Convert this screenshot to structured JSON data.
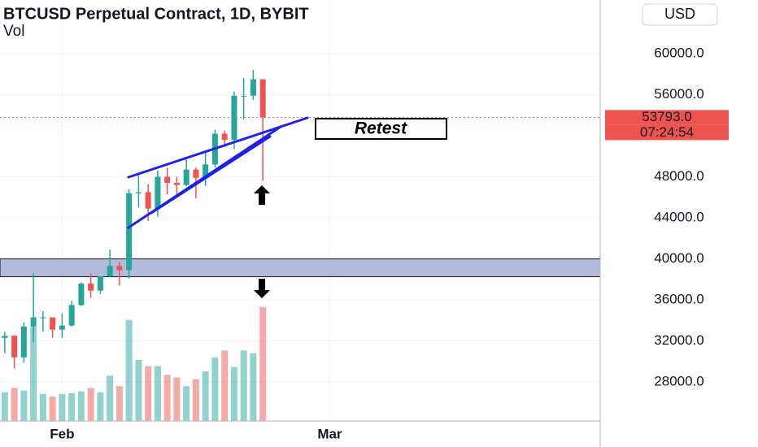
{
  "chart_data": {
    "type": "candlestick",
    "title": "BTCUSD Perpetual Contract, 1D, BYBIT",
    "subtitle": "Vol",
    "currency": "USD",
    "annotation": "Retest",
    "x": [
      0,
      1,
      2,
      3,
      4,
      5,
      6,
      7,
      8,
      9,
      10,
      11,
      12,
      13,
      14,
      15,
      16,
      17,
      18,
      19,
      20,
      21,
      22,
      23,
      24,
      25,
      26,
      27
    ],
    "open": [
      32300,
      32500,
      30400,
      33400,
      34300,
      34300,
      33100,
      33500,
      35500,
      37600,
      36900,
      38300,
      39300,
      38900,
      46400,
      46500,
      44900,
      48000,
      47400,
      47200,
      48700,
      47900,
      49200,
      52200,
      51600,
      55900,
      55900,
      57500
    ],
    "high": [
      32900,
      32600,
      33800,
      38600,
      34900,
      34300,
      34700,
      35900,
      37700,
      38600,
      38300,
      40900,
      39700,
      46800,
      48200,
      47300,
      48600,
      48900,
      48000,
      49700,
      48900,
      50600,
      52600,
      52500,
      56300,
      57600,
      58400,
      57500
    ],
    "low": [
      30800,
      29300,
      29900,
      31900,
      32900,
      32300,
      32300,
      33400,
      35400,
      36200,
      36600,
      38200,
      37400,
      38100,
      45000,
      43700,
      44100,
      46300,
      46300,
      47100,
      45900,
      47100,
      48900,
      50900,
      50700,
      53600,
      55500,
      47600
    ],
    "close": [
      32500,
      30400,
      33400,
      34300,
      34300,
      33100,
      33500,
      35500,
      37600,
      36900,
      38300,
      39300,
      38900,
      46400,
      46500,
      44900,
      48000,
      47400,
      47200,
      48700,
      47900,
      49200,
      52200,
      51600,
      55900,
      55900,
      57500,
      53793
    ],
    "volume": [
      33,
      38,
      35,
      108,
      31,
      28,
      31,
      32,
      34,
      38,
      33,
      52,
      40,
      116,
      70,
      63,
      63,
      53,
      50,
      40,
      48,
      57,
      73,
      81,
      62,
      81,
      78,
      131
    ],
    "vlim": [
      0,
      140
    ],
    "up_color": "#26a69a",
    "down_color": "#ef5350",
    "xlim": [
      -0.5,
      62.3
    ],
    "xticks": [
      {
        "value": 6,
        "label": "Feb"
      },
      {
        "value": 34,
        "label": "Mar"
      }
    ],
    "ylim": [
      24200,
      65230
    ],
    "yticks": [
      {
        "value": 28000,
        "label": "28000.0"
      },
      {
        "value": 32000,
        "label": "32000.0"
      },
      {
        "value": 36000,
        "label": "36000.0"
      },
      {
        "value": 40000,
        "label": "40000.0"
      },
      {
        "value": 44000,
        "label": "44000.0"
      },
      {
        "value": 48000,
        "label": "48000.0"
      },
      {
        "value": 56000,
        "label": "56000.0"
      },
      {
        "value": 60000,
        "label": "60000.0"
      }
    ],
    "zone": [
      38260,
      40000
    ],
    "last_price": {
      "value": 53793,
      "label": "53793.0"
    },
    "countdown": "07:24:54",
    "grid": true
  }
}
